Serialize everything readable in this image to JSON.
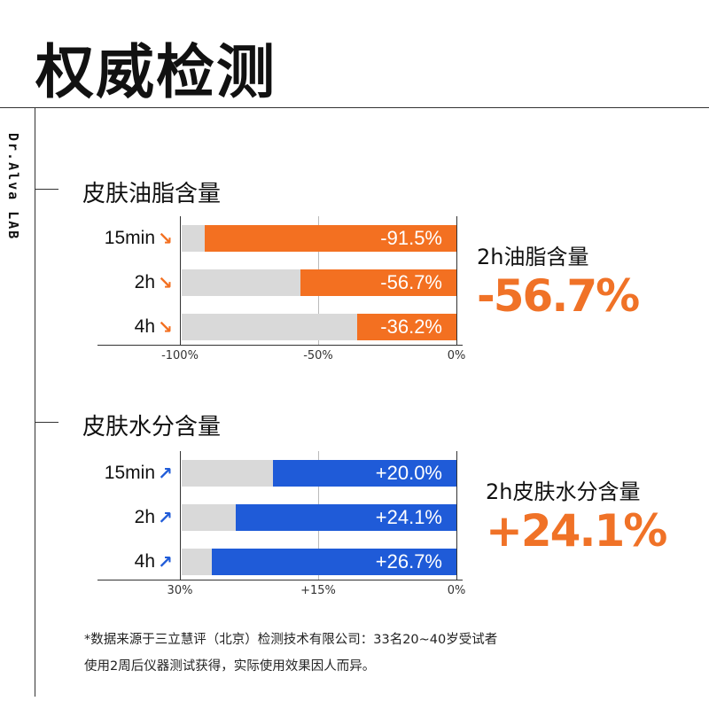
{
  "title": "权威检测",
  "brand": "Dr.Alva LAB",
  "colors": {
    "oil": "#f37021",
    "water": "#1f5bd8",
    "track": "#d9d9d9",
    "highlight": "#f07227"
  },
  "chart_data": [
    {
      "type": "bar",
      "title": "皮肤油脂含量",
      "categories": [
        "15min",
        "2h",
        "4h"
      ],
      "values": [
        -91.5,
        -56.7,
        -36.2
      ],
      "value_labels": [
        "-91.5%",
        "-56.7%",
        "-36.2%"
      ],
      "xlim": [
        -100,
        0
      ],
      "ticks": [
        "-100%",
        "-50%",
        "0%"
      ],
      "trend_icon": "arrow-down-icon",
      "highlight_label": "2h油脂含量",
      "highlight_value": "-56.7%"
    },
    {
      "type": "bar",
      "title": "皮肤水分含量",
      "categories": [
        "15min",
        "2h",
        "4h"
      ],
      "values": [
        20.0,
        24.1,
        26.7
      ],
      "value_labels": [
        "+20.0%",
        "+24.1%",
        "+26.7%"
      ],
      "xlim": [
        30,
        0
      ],
      "ticks": [
        "30%",
        "+15%",
        "0%"
      ],
      "trend_icon": "arrow-up-icon",
      "highlight_label": "2h皮肤水分含量",
      "highlight_value": "+24.1%"
    }
  ],
  "footnote": [
    "*数据来源于三立慧评（北京）检测技术有限公司：33名20~40岁受试者",
    "使用2周后仪器测试获得，实际使用效果因人而异。"
  ]
}
